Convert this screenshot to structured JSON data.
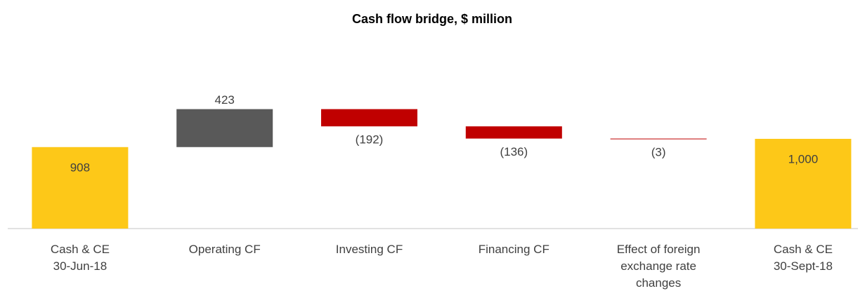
{
  "chart_data": {
    "type": "waterfall",
    "title": "Cash flow bridge, $ million",
    "categories": [
      "Cash & CE\n30-Jun-18",
      "Operating CF",
      "Investing CF",
      "Financing CF",
      "Effect of foreign\nexchange rate\nchanges",
      "Cash & CE\n30-Sept-18"
    ],
    "values": [
      908,
      423,
      -192,
      -136,
      -3,
      1000
    ],
    "value_labels": [
      "908",
      "423",
      "(192)",
      "(136)",
      "(3)",
      "1,000"
    ],
    "measures": [
      "total",
      "relative",
      "relative",
      "relative",
      "relative",
      "total"
    ],
    "colors": {
      "total": "#fdc818",
      "increase": "#595959",
      "decrease": "#c00000"
    },
    "ylim": [
      0,
      1500
    ]
  }
}
